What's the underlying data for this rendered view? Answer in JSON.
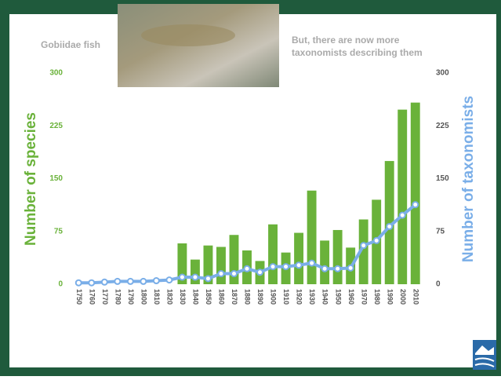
{
  "chart_data": {
    "type": "bar",
    "annotations": [
      "Gobiidae fish",
      "But, there are now more",
      "taxonomists describing them"
    ],
    "ylabel": "Number of species",
    "y2label": "Number of taxonomists",
    "categories": [
      "1750",
      "1760",
      "1770",
      "1780",
      "1790",
      "1800",
      "1810",
      "1820",
      "1830",
      "1840",
      "1850",
      "1860",
      "1870",
      "1880",
      "1890",
      "1900",
      "1910",
      "1920",
      "1930",
      "1940",
      "1950",
      "1960",
      "1970",
      "1980",
      "1990",
      "2000",
      "2010"
    ],
    "series": [
      {
        "name": "Number of species",
        "type": "bar",
        "color": "#6ab23a",
        "values": [
          0,
          0,
          0,
          0,
          0,
          0,
          0,
          0,
          58,
          35,
          55,
          53,
          70,
          48,
          33,
          85,
          45,
          73,
          133,
          62,
          77,
          52,
          92,
          120,
          175,
          248,
          258
        ]
      },
      {
        "name": "Number of taxonomists",
        "type": "line",
        "axis": "y2",
        "color": "#7aaee8",
        "values": [
          2,
          2,
          3,
          4,
          4,
          4,
          5,
          6,
          10,
          10,
          8,
          15,
          15,
          22,
          17,
          25,
          25,
          27,
          30,
          22,
          22,
          23,
          55,
          62,
          82,
          98,
          113
        ]
      }
    ],
    "ylim": [
      0,
      300
    ],
    "yticks": [
      0,
      75,
      150,
      225,
      300
    ],
    "y2lim": [
      0,
      300
    ],
    "y2ticks": [
      0,
      75,
      150,
      225,
      300
    ]
  }
}
